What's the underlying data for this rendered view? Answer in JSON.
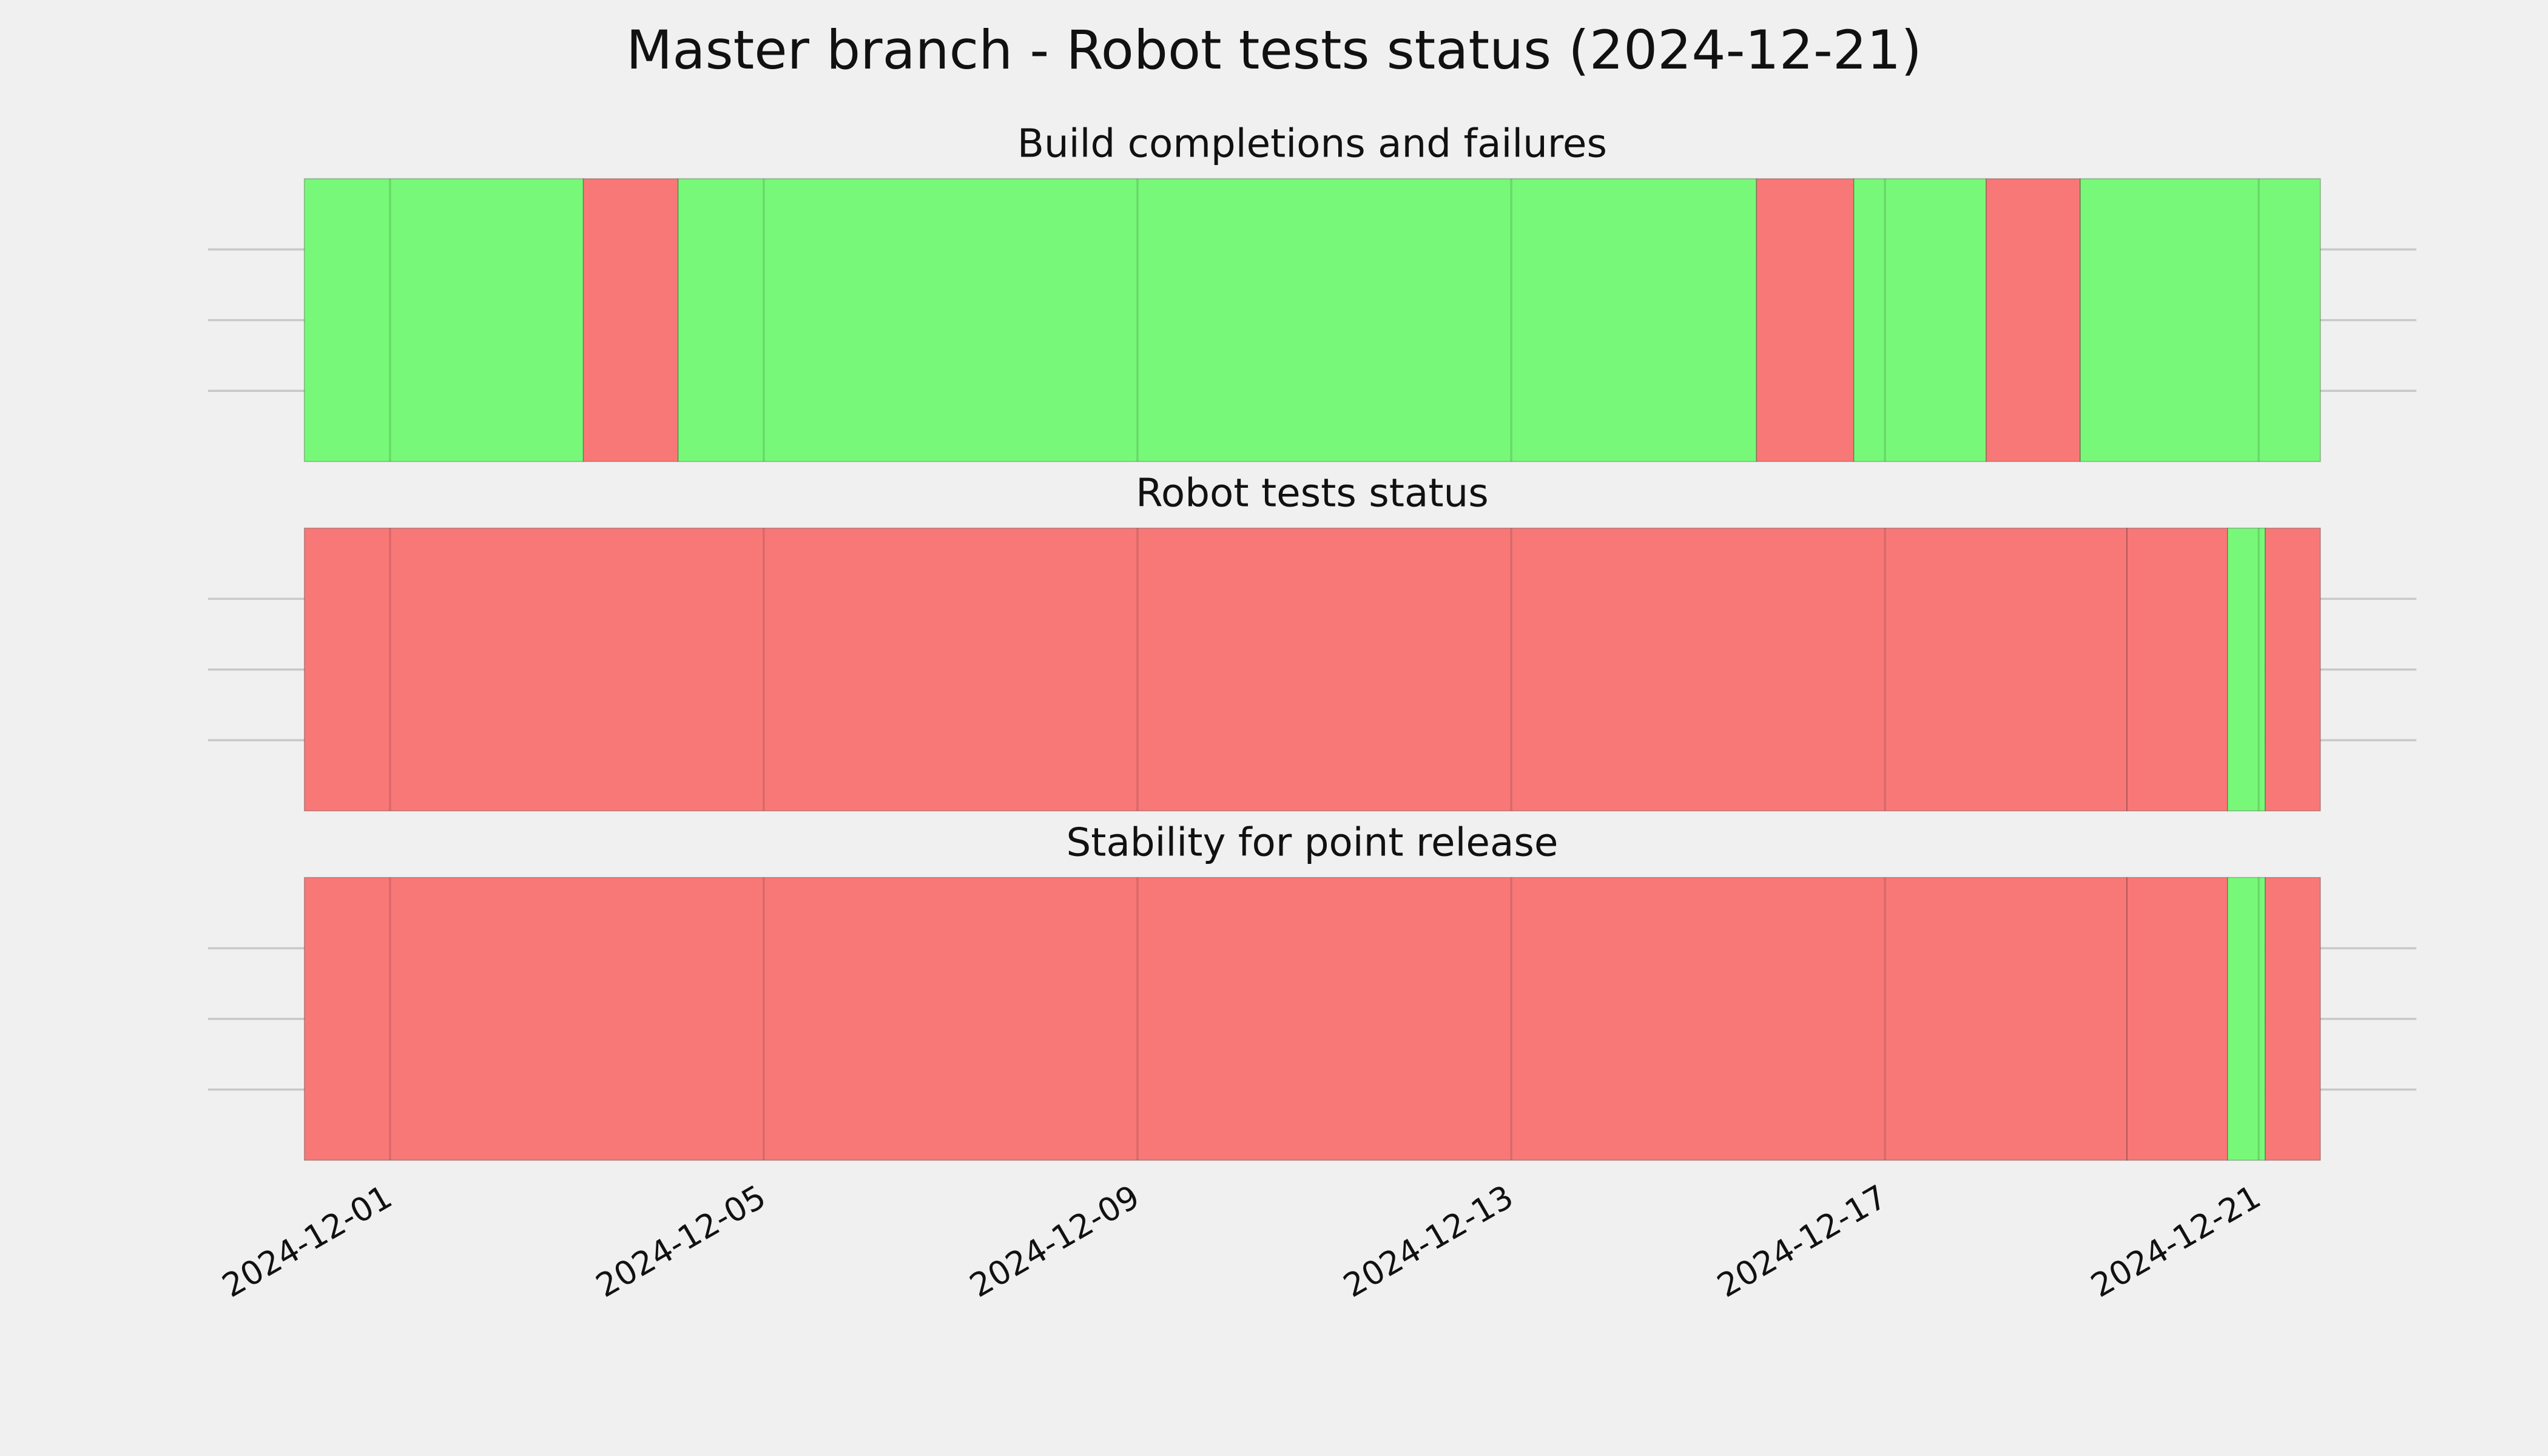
{
  "title": "Master branch - Robot tests status (2024-12-21)",
  "chart_data": [
    {
      "type": "timeline",
      "title": "Build completions and failures",
      "xlim": [
        "2024-11-29T01:15",
        "2024-12-22T16:30"
      ],
      "xticks": [
        "2024-12-01",
        "2024-12-05",
        "2024-12-09",
        "2024-12-13",
        "2024-12-17",
        "2024-12-21"
      ],
      "show_xtick_labels": false,
      "ylim": [
        0,
        1
      ],
      "yticks": [
        0.25,
        0.5,
        0.75
      ],
      "show_ytick_labels": false,
      "grid": true,
      "spans": [
        {
          "start": "2024-11-30T02:00",
          "end": "2024-12-03T01:40",
          "color": "#78f878"
        },
        {
          "start": "2024-12-03T01:40",
          "end": "2024-12-04T02:00",
          "color": "#f87878"
        },
        {
          "start": "2024-12-04T02:00",
          "end": "2024-12-15T15:00",
          "color": "#78f878"
        },
        {
          "start": "2024-12-15T15:00",
          "end": "2024-12-16T16:00",
          "color": "#f87878"
        },
        {
          "start": "2024-12-16T16:00",
          "end": "2024-12-18T02:00",
          "color": "#78f878"
        },
        {
          "start": "2024-12-18T02:00",
          "end": "2024-12-19T02:10",
          "color": "#f87878"
        },
        {
          "start": "2024-12-19T02:10",
          "end": "2024-12-21T15:50",
          "color": "#78f878"
        }
      ]
    },
    {
      "type": "timeline",
      "title": "Robot tests status",
      "xlim": [
        "2024-11-29T01:15",
        "2024-12-22T16:30"
      ],
      "xticks": [
        "2024-12-01",
        "2024-12-05",
        "2024-12-09",
        "2024-12-13",
        "2024-12-17",
        "2024-12-21"
      ],
      "show_xtick_labels": false,
      "ylim": [
        0,
        1
      ],
      "yticks": [
        0.25,
        0.5,
        0.75
      ],
      "show_ytick_labels": false,
      "grid": true,
      "spans": [
        {
          "start": "2024-11-30T02:00",
          "end": "2024-12-19T14:10",
          "color": "#f87878"
        },
        {
          "start": "2024-12-19T14:10",
          "end": "2024-12-20T16:00",
          "color": "#f87878"
        },
        {
          "start": "2024-12-20T16:00",
          "end": "2024-12-21T01:40",
          "color": "#78f878"
        },
        {
          "start": "2024-12-21T01:40",
          "end": "2024-12-21T15:50",
          "color": "#f87878"
        }
      ]
    },
    {
      "type": "timeline",
      "title": "Stability for point release",
      "xlim": [
        "2024-11-29T01:15",
        "2024-12-22T16:30"
      ],
      "xticks": [
        "2024-12-01",
        "2024-12-05",
        "2024-12-09",
        "2024-12-13",
        "2024-12-17",
        "2024-12-21"
      ],
      "show_xtick_labels": true,
      "ylim": [
        0,
        1
      ],
      "yticks": [
        0.25,
        0.5,
        0.75
      ],
      "show_ytick_labels": false,
      "grid": true,
      "spans": [
        {
          "start": "2024-11-30T02:00",
          "end": "2024-12-19T14:10",
          "color": "#f87878"
        },
        {
          "start": "2024-12-19T14:10",
          "end": "2024-12-20T16:00",
          "color": "#f87878"
        },
        {
          "start": "2024-12-20T16:00",
          "end": "2024-12-21T01:40",
          "color": "#78f878"
        },
        {
          "start": "2024-12-21T01:40",
          "end": "2024-12-21T15:50",
          "color": "#f87878"
        }
      ]
    }
  ]
}
